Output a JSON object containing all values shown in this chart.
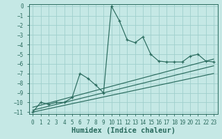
{
  "xlabel": "Humidex (Indice chaleur)",
  "bg_color": "#c5e8e5",
  "grid_color": "#9fcfcc",
  "line_color": "#2a6b5e",
  "xlim": [
    -0.5,
    23.5
  ],
  "ylim": [
    -11.2,
    0.2
  ],
  "xticks": [
    0,
    1,
    2,
    3,
    4,
    5,
    6,
    7,
    8,
    9,
    10,
    11,
    12,
    13,
    14,
    15,
    16,
    17,
    18,
    19,
    20,
    21,
    22,
    23
  ],
  "yticks": [
    0,
    -1,
    -2,
    -3,
    -4,
    -5,
    -6,
    -7,
    -8,
    -9,
    -10,
    -11
  ],
  "main_x": [
    0,
    1,
    2,
    3,
    4,
    5,
    6,
    7,
    8,
    9,
    10,
    11,
    12,
    13,
    14,
    15,
    16,
    17,
    18,
    19,
    20,
    21,
    22,
    23
  ],
  "main_y": [
    -11,
    -10,
    -10.2,
    -10,
    -10,
    -9.5,
    -7,
    -7.5,
    -8.2,
    -9.0,
    0.0,
    -1.5,
    -3.5,
    -3.8,
    -3.2,
    -5.0,
    -5.7,
    -5.8,
    -5.8,
    -5.8,
    -5.2,
    -5.0,
    -5.7,
    -5.8
  ],
  "line1_x": [
    0,
    23
  ],
  "line1_y": [
    -10.5,
    -5.5
  ],
  "line2_x": [
    0,
    23
  ],
  "line2_y": [
    -10.8,
    -6.2
  ],
  "line3_x": [
    0,
    23
  ],
  "line3_y": [
    -11.0,
    -7.0
  ],
  "tick_fontsize": 5.5,
  "label_fontsize": 7.5
}
